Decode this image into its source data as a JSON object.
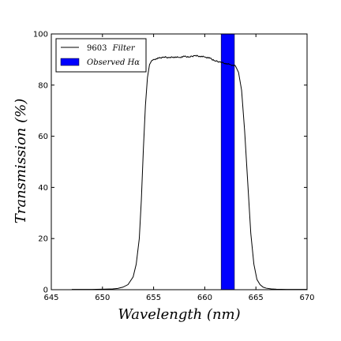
{
  "chart_data": {
    "type": "line",
    "xlabel": "Wavelength (nm)",
    "ylabel": "Transmission (%)",
    "xlim": [
      645,
      670
    ],
    "ylim": [
      0,
      100
    ],
    "xticks": [
      645,
      650,
      655,
      660,
      665,
      670
    ],
    "yticks": [
      0,
      20,
      40,
      60,
      80,
      100
    ],
    "grid": false,
    "legend_position": "top-left",
    "legend": [
      {
        "label_number": "9603",
        "label_text": "Filter",
        "marker": "line"
      },
      {
        "label_text": "Observed Hα",
        "marker": "patch"
      }
    ],
    "series": [
      {
        "name": "9603 Filter",
        "color": "#000000",
        "x": [
          647.0,
          648.0,
          649.0,
          650.0,
          651.0,
          651.5,
          652.0,
          652.5,
          653.0,
          653.3,
          653.6,
          653.8,
          654.0,
          654.2,
          654.4,
          654.6,
          654.8,
          655.0,
          655.5,
          656.0,
          656.5,
          657.0,
          657.5,
          658.0,
          658.5,
          659.0,
          659.5,
          660.0,
          660.5,
          661.0,
          661.5,
          662.0,
          662.5,
          663.0,
          663.3,
          663.6,
          663.9,
          664.2,
          664.5,
          664.8,
          665.1,
          665.4,
          665.7,
          666.0,
          666.5,
          667.0,
          668.0,
          669.0,
          670.0
        ],
        "y": [
          0.1,
          0.1,
          0.1,
          0.2,
          0.3,
          0.5,
          1.0,
          2.0,
          5.0,
          10.0,
          20.0,
          35.0,
          55.0,
          72.0,
          83.0,
          88.0,
          89.5,
          90.0,
          90.5,
          91.0,
          90.7,
          91.0,
          90.8,
          91.2,
          91.0,
          91.5,
          91.3,
          91.0,
          90.5,
          89.5,
          89.0,
          88.5,
          88.0,
          87.5,
          85.0,
          78.0,
          62.0,
          42.0,
          22.0,
          10.0,
          4.0,
          2.0,
          1.0,
          0.6,
          0.3,
          0.2,
          0.1,
          0.1,
          0.1
        ]
      }
    ],
    "bands": [
      {
        "name": "Observed Hα",
        "color": "#0000ff",
        "x_start": 661.6,
        "x_end": 662.9
      }
    ]
  }
}
